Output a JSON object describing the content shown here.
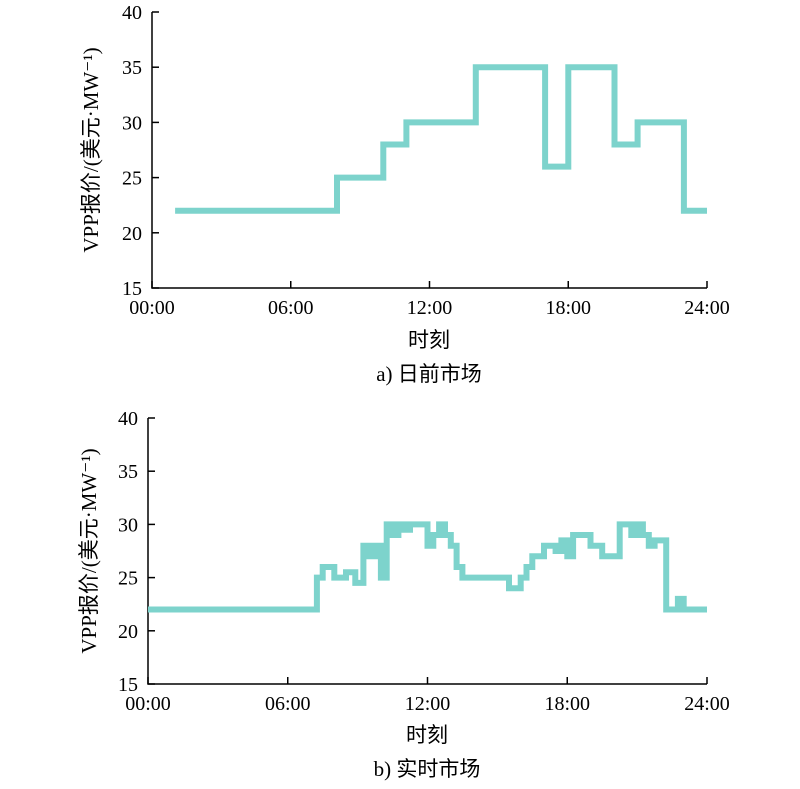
{
  "series_color": "#7dd3cc",
  "chart_data": [
    {
      "type": "line",
      "step": true,
      "caption": "a) 日前市场",
      "xlabel": "时刻",
      "ylabel": "VPP报价/(美元·MW⁻¹)",
      "xlim": [
        0,
        24
      ],
      "ylim": [
        15,
        40
      ],
      "x_ticks": [
        0,
        6,
        12,
        18,
        24
      ],
      "x_tick_labels": [
        "00:00",
        "06:00",
        "12:00",
        "18:00",
        "24:00"
      ],
      "y_ticks": [
        15,
        20,
        25,
        30,
        35,
        40
      ],
      "y_tick_labels": [
        "15",
        "20",
        "25",
        "30",
        "35",
        "40"
      ],
      "grid": false,
      "series": [
        {
          "x": [
            1,
            8,
            8,
            10,
            10,
            11,
            11,
            14,
            14,
            17,
            17,
            18,
            18,
            20,
            20,
            21,
            21,
            23,
            23,
            24
          ],
          "y": [
            22,
            22,
            25,
            25,
            28,
            28,
            30,
            30,
            35,
            35,
            26,
            26,
            35,
            35,
            28,
            28,
            30,
            30,
            22,
            22
          ]
        }
      ]
    },
    {
      "type": "line",
      "step": true,
      "caption": "b) 实时市场",
      "xlabel": "时刻",
      "ylabel": "VPP报价/(美元·MW⁻¹)",
      "xlim": [
        0,
        24
      ],
      "ylim": [
        15,
        40
      ],
      "x_ticks": [
        0,
        6,
        12,
        18,
        24
      ],
      "x_tick_labels": [
        "00:00",
        "06:00",
        "12:00",
        "18:00",
        "24:00"
      ],
      "y_ticks": [
        15,
        20,
        25,
        30,
        35,
        40
      ],
      "y_tick_labels": [
        "15",
        "20",
        "25",
        "30",
        "35",
        "40"
      ],
      "grid": false,
      "series": [
        {
          "x": [
            0,
            7.25,
            7.25,
            7.5,
            7.5,
            8,
            8,
            8.5,
            8.5,
            8.9,
            8.9,
            9.25,
            9.25,
            9.5,
            9.5,
            9.75,
            9.75,
            10,
            10,
            10.25,
            10.25,
            10.5,
            10.5,
            10.75,
            10.75,
            11,
            11,
            11.25,
            11.25,
            11.5,
            11.5,
            12,
            12,
            12.25,
            12.25,
            12.5,
            12.5,
            12.75,
            12.75,
            13,
            13,
            13.25,
            13.25,
            13.5,
            13.5,
            14,
            14,
            15.5,
            15.5,
            16,
            16,
            16.25,
            16.25,
            16.5,
            16.5,
            17,
            17,
            17.5,
            17.5,
            17.75,
            17.75,
            18,
            18,
            18.25,
            18.25,
            19,
            19,
            19.5,
            19.5,
            20.25,
            20.25,
            20.75,
            20.75,
            21,
            21,
            21.25,
            21.25,
            21.5,
            21.5,
            21.75,
            21.75,
            22.25,
            22.25,
            22.75,
            22.75,
            23,
            23,
            24
          ],
          "y": [
            22,
            22,
            25,
            25,
            26,
            26,
            25,
            25,
            25.5,
            25.5,
            24.5,
            24.5,
            28,
            28,
            27,
            27,
            28,
            28,
            25,
            25,
            30,
            30,
            29,
            29,
            30,
            30,
            29.5,
            29.5,
            30,
            30,
            30,
            30,
            28,
            28,
            29,
            29,
            30,
            30,
            29,
            29,
            28,
            28,
            26,
            26,
            25,
            25,
            25,
            25,
            24,
            24,
            25,
            25,
            26,
            26,
            27,
            27,
            28,
            28,
            27.5,
            27.5,
            28.5,
            28.5,
            27,
            27,
            29,
            29,
            28,
            28,
            27,
            27,
            30,
            30,
            29,
            29,
            30,
            30,
            29,
            29,
            28,
            28,
            28.5,
            28.5,
            22,
            22,
            23,
            23,
            22,
            22
          ]
        }
      ]
    }
  ]
}
